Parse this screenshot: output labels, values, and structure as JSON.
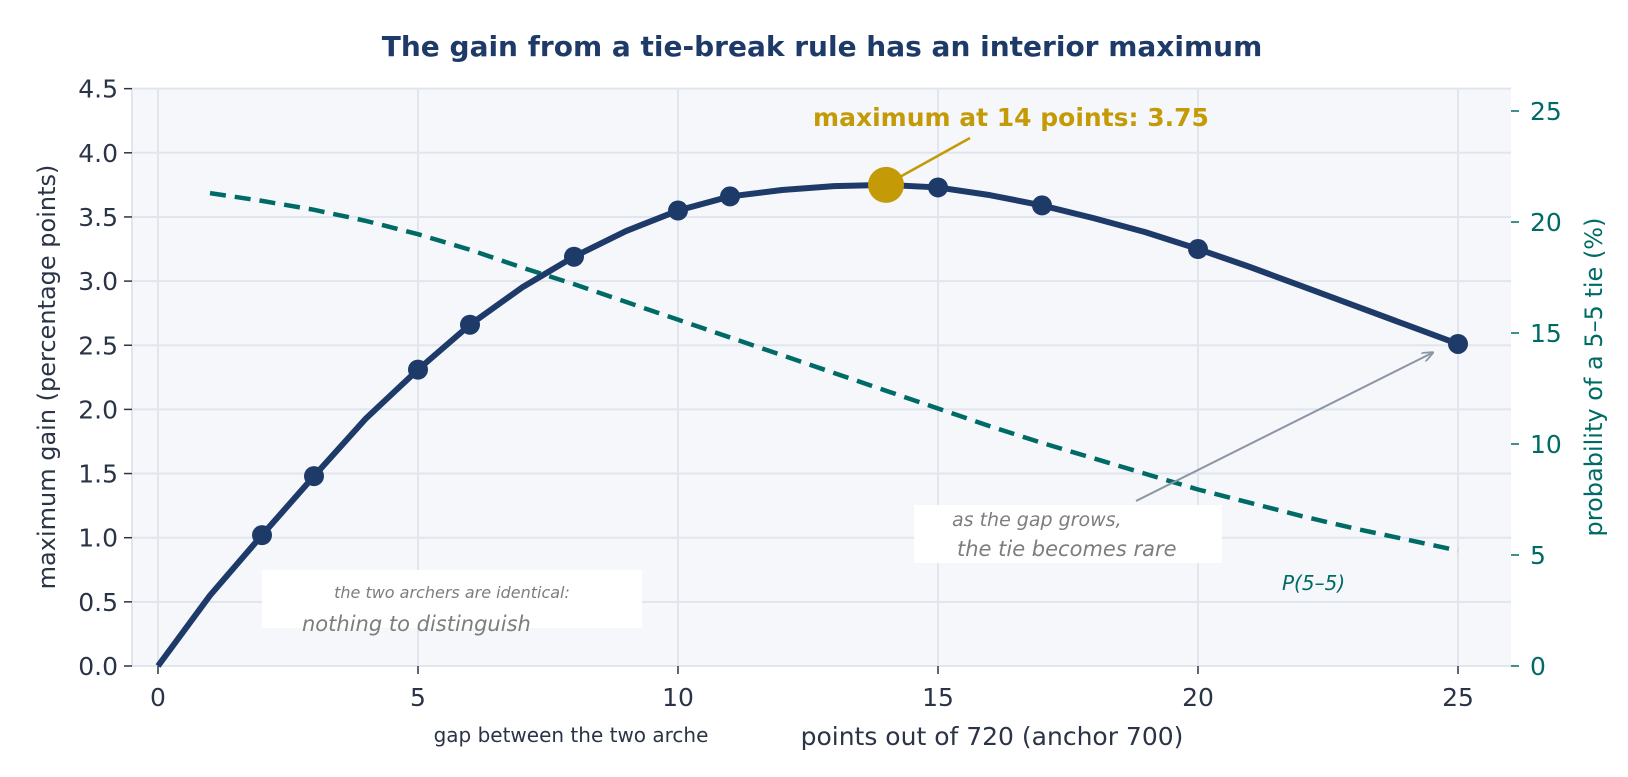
{
  "chart_data": {
    "type": "line",
    "title": "The gain from a tie-break rule has an interior maximum",
    "xlabel": "points out of 720 (anchor 700)",
    "xlabel_secondary": "gap between the two arche",
    "ylabel": "maximum gain (percentage points)",
    "y2label": "probability of a 5–5 tie (%)",
    "xlim": [
      -0.5,
      26
    ],
    "ylim": [
      0,
      4.5
    ],
    "y2lim": [
      0,
      25.8
    ],
    "xticks": [
      0,
      5,
      10,
      15,
      20,
      25
    ],
    "yticks": [
      0.0,
      0.5,
      1.0,
      1.5,
      2.0,
      2.5,
      3.0,
      3.5,
      4.0,
      4.5
    ],
    "y2ticks": [
      0,
      5,
      10,
      15,
      20,
      25
    ],
    "grid": true,
    "series": [
      {
        "axis": "left",
        "style": "solid",
        "color": "#1e3a68",
        "x": [
          0,
          1,
          2,
          3,
          4,
          5,
          6,
          7,
          8,
          9,
          10,
          11,
          12,
          13,
          14,
          15,
          16,
          17,
          18,
          19,
          20,
          21,
          22,
          23,
          24,
          25
        ],
        "values": [
          0.0,
          0.55,
          1.02,
          1.48,
          1.93,
          2.31,
          2.66,
          2.95,
          3.19,
          3.39,
          3.55,
          3.66,
          3.71,
          3.74,
          3.75,
          3.73,
          3.67,
          3.59,
          3.49,
          3.38,
          3.25,
          3.11,
          2.96,
          2.81,
          2.66,
          2.51
        ],
        "markers_x": [
          2,
          3,
          5,
          6,
          8,
          10,
          11,
          15,
          17,
          20,
          25
        ]
      },
      {
        "name": "P(5–5)",
        "axis": "right",
        "style": "dashed",
        "color": "#006b66",
        "x": [
          1,
          2,
          3,
          4,
          5,
          6,
          7,
          8,
          9,
          10,
          11,
          12,
          13,
          14,
          15,
          16,
          17,
          18,
          19,
          20,
          21,
          22,
          23,
          24,
          25
        ],
        "values": [
          21.3,
          20.95,
          20.55,
          20.05,
          19.45,
          18.75,
          17.95,
          17.2,
          16.4,
          15.6,
          14.8,
          14.0,
          13.2,
          12.4,
          11.6,
          10.8,
          10.05,
          9.35,
          8.65,
          7.95,
          7.35,
          6.75,
          6.2,
          5.7,
          5.2
        ]
      }
    ],
    "highlight": {
      "x": 14,
      "y": 3.75,
      "color": "#c49a06",
      "label": "maximum at 14 points: 3.75"
    },
    "annotations": {
      "identical_top": "the two archers are identical:",
      "identical_bottom": "nothing to distinguish",
      "gap_top": "as the gap grows,",
      "gap_bottom": "the tie becomes rare",
      "series_label": "P(5–5)"
    },
    "colors": {
      "plot_bg": "#f5f7fb",
      "grid": "#e1e5ee",
      "title": "#1e3a68",
      "text": "#2b3446",
      "annotation": "#7d7d7d",
      "arrow": "#8c95a5"
    }
  }
}
